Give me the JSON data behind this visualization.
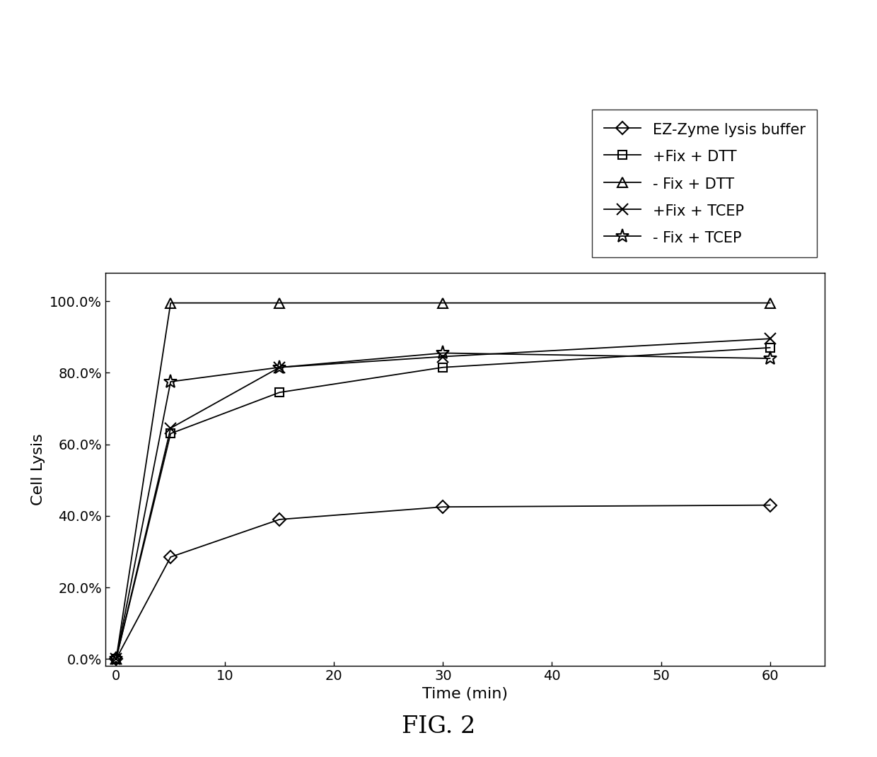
{
  "title": "FIG. 2",
  "xlabel": "Time (min)",
  "ylabel": "Cell Lysis",
  "xlim": [
    -1,
    65
  ],
  "ylim": [
    -0.02,
    1.08
  ],
  "xticks": [
    0,
    10,
    20,
    30,
    40,
    50,
    60
  ],
  "yticks": [
    0.0,
    0.2,
    0.4,
    0.6,
    0.8,
    1.0
  ],
  "ytick_labels": [
    "0.0%",
    "20.0%",
    "40.0%",
    "60.0%",
    "80.0%",
    "100.0%"
  ],
  "series": [
    {
      "label": "EZ-Zyme lysis buffer",
      "x": [
        0,
        5,
        15,
        30,
        60
      ],
      "y": [
        0.0,
        0.285,
        0.39,
        0.425,
        0.43
      ],
      "marker": "D",
      "markersize": 9,
      "markerfacecolor": "none",
      "linestyle": "-",
      "color": "#000000"
    },
    {
      "label": "+Fix + DTT",
      "x": [
        0,
        5,
        15,
        30,
        60
      ],
      "y": [
        0.0,
        0.63,
        0.745,
        0.815,
        0.87
      ],
      "marker": "s",
      "markersize": 9,
      "markerfacecolor": "none",
      "linestyle": "-",
      "color": "#000000"
    },
    {
      "label": "- Fix + DTT",
      "x": [
        0,
        5,
        15,
        30,
        60
      ],
      "y": [
        0.0,
        0.995,
        0.995,
        0.995,
        0.995
      ],
      "marker": "^",
      "markersize": 10,
      "markerfacecolor": "none",
      "linestyle": "-",
      "color": "#000000"
    },
    {
      "label": "+Fix + TCEP",
      "x": [
        0,
        5,
        15,
        30,
        60
      ],
      "y": [
        0.0,
        0.645,
        0.815,
        0.845,
        0.895
      ],
      "marker": "x",
      "markersize": 11,
      "markerfacecolor": "black",
      "linestyle": "-",
      "color": "#000000"
    },
    {
      "label": "- Fix + TCEP",
      "x": [
        0,
        5,
        15,
        30,
        60
      ],
      "y": [
        0.0,
        0.775,
        0.815,
        0.855,
        0.84
      ],
      "marker": "*",
      "markersize": 14,
      "markerfacecolor": "none",
      "linestyle": "-",
      "color": "#000000"
    }
  ],
  "background_color": "#ffffff",
  "figsize": [
    12.4,
    10.71
  ],
  "dpi": 100
}
